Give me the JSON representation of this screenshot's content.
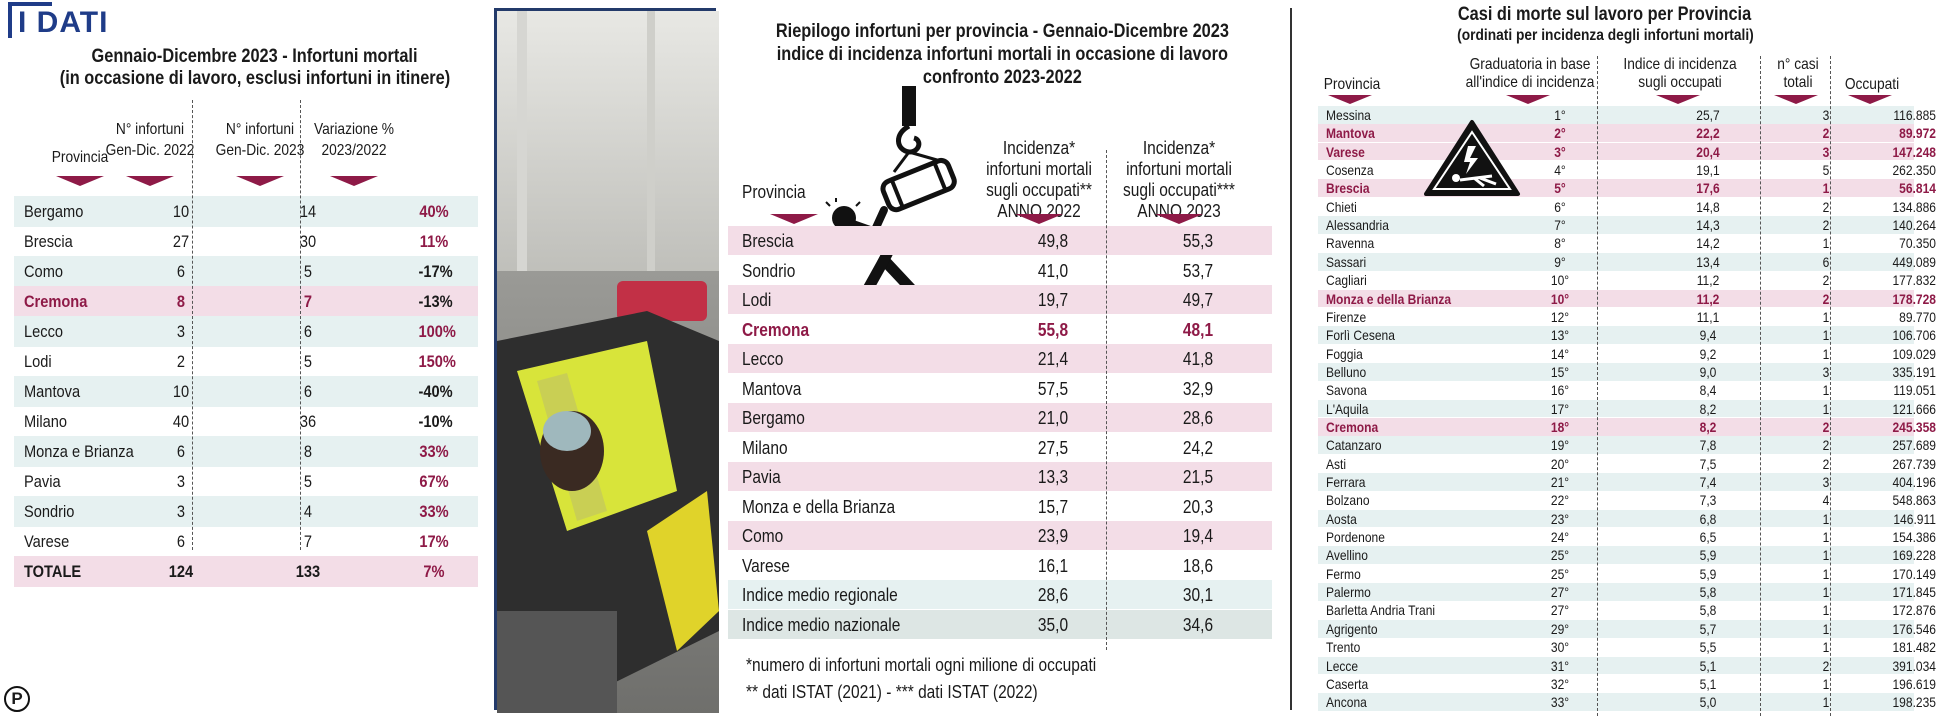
{
  "brand": {
    "label": "I DATI",
    "footer_logo": "P"
  },
  "colors": {
    "accent": "#8e1a47",
    "pink_row": "#f3dde7",
    "mint_row": "#e6f1f1",
    "navy": "#1f3c88"
  },
  "icons": [
    "crane-hook-icon",
    "falling-worker-icon",
    "warning-fatality-icon"
  ],
  "chart_data": [
    {
      "type": "table",
      "title": "Gennaio-Dicembre 2023 - Infortuni mortali",
      "subtitle": "(in occasione di lavoro, esclusi infortuni in itinere)",
      "columns": [
        "Provincia",
        "N° infortuni Gen-Dic. 2022",
        "N° infortuni Gen-Dic. 2023",
        "Variazione % 2023/2022"
      ],
      "col_lines": [
        [
          "Provincia"
        ],
        [
          "N° infortuni",
          "Gen-Dic. 2022"
        ],
        [
          "N° infortuni",
          "Gen-Dic. 2023"
        ],
        [
          "Variazione %",
          "2023/2022"
        ]
      ],
      "rows": [
        [
          "Bergamo",
          "10",
          "14",
          "40%"
        ],
        [
          "Brescia",
          "27",
          "30",
          "11%"
        ],
        [
          "Como",
          "6",
          "5",
          "-17%"
        ],
        [
          "Cremona",
          "8",
          "7",
          "-13%"
        ],
        [
          "Lecco",
          "3",
          "6",
          "100%"
        ],
        [
          "Lodi",
          "2",
          "5",
          "150%"
        ],
        [
          "Mantova",
          "10",
          "6",
          "-40%"
        ],
        [
          "Milano",
          "40",
          "36",
          "-10%"
        ],
        [
          "Monza e Brianza",
          "6",
          "8",
          "33%"
        ],
        [
          "Pavia",
          "3",
          "5",
          "67%"
        ],
        [
          "Sondrio",
          "3",
          "4",
          "33%"
        ],
        [
          "Varese",
          "6",
          "7",
          "17%"
        ],
        [
          "TOTALE",
          "124",
          "133",
          "7%"
        ]
      ]
    },
    {
      "type": "table",
      "title": "Riepilogo infortuni per provincia - Gennaio-Dicembre 2023",
      "subtitle": "indice di incidenza infortuni mortali in occasione di lavoro",
      "subtitle2": "confronto 2023-2022",
      "columns": [
        "Provincia",
        "Incidenza* infortuni mortali sugli occupati** ANNO 2022",
        "Incidenza* infortuni mortali sugli occupati*** ANNO 2023"
      ],
      "col_lines": [
        [
          "Provincia"
        ],
        [
          "Incidenza*",
          "infortuni mortali",
          "sugli occupati**",
          "ANNO 2022"
        ],
        [
          "Incidenza*",
          "infortuni mortali",
          "sugli occupati***",
          "ANNO 2023"
        ]
      ],
      "rows": [
        [
          "Brescia",
          "49,8",
          "55,3"
        ],
        [
          "Sondrio",
          "41,0",
          "53,7"
        ],
        [
          "Lodi",
          "19,7",
          "49,7"
        ],
        [
          "Cremona",
          "55,8",
          "48,1"
        ],
        [
          "Lecco",
          "21,4",
          "41,8"
        ],
        [
          "Mantova",
          "57,5",
          "32,9"
        ],
        [
          "Bergamo",
          "21,0",
          "28,6"
        ],
        [
          "Milano",
          "27,5",
          "24,2"
        ],
        [
          "Pavia",
          "13,3",
          "21,5"
        ],
        [
          "Monza e della Brianza",
          "15,7",
          "20,3"
        ],
        [
          "Como",
          "23,9",
          "19,4"
        ],
        [
          "Varese",
          "16,1",
          "18,6"
        ],
        [
          "Indice medio regionale",
          "28,6",
          "30,1"
        ],
        [
          "Indice medio nazionale",
          "35,0",
          "34,6"
        ]
      ],
      "notes": [
        "*numero di infortuni mortali ogni milione di occupati",
        "** dati ISTAT (2021) - *** dati ISTAT (2022)"
      ]
    },
    {
      "type": "table",
      "title": "Casi di morte sul lavoro per Provincia",
      "subtitle": "(ordinati per incidenza degli infortuni mortali)",
      "columns": [
        "Provincia",
        "Graduatoria in base all'indice di incidenza",
        "Indice di incidenza sugli occupati",
        "n° casi totali",
        "Occupati"
      ],
      "col_lines": [
        [
          "Provincia"
        ],
        [
          "Graduatoria in base",
          "all'indice di incidenza"
        ],
        [
          "Indice di incidenza",
          "sugli occupati"
        ],
        [
          "n° casi",
          "totali"
        ],
        [
          "Occupati"
        ]
      ],
      "rows": [
        [
          "Messina",
          "1°",
          "25,7",
          "3",
          "116.885"
        ],
        [
          "Mantova",
          "2°",
          "22,2",
          "2",
          "89.972"
        ],
        [
          "Varese",
          "3°",
          "20,4",
          "3",
          "147.248"
        ],
        [
          "Cosenza",
          "4°",
          "19,1",
          "5",
          "262.350"
        ],
        [
          "Brescia",
          "5°",
          "17,6",
          "1",
          "56.814"
        ],
        [
          "Chieti",
          "6°",
          "14,8",
          "2",
          "134.886"
        ],
        [
          "Alessandria",
          "7°",
          "14,3",
          "2",
          "140.264"
        ],
        [
          "Ravenna",
          "8°",
          "14,2",
          "1",
          "70.350"
        ],
        [
          "Sassari",
          "9°",
          "13,4",
          "6",
          "449.089"
        ],
        [
          "Cagliari",
          "10°",
          "11,2",
          "2",
          "177.832"
        ],
        [
          "Monza e della Brianza",
          "10°",
          "11,2",
          "2",
          "178.728"
        ],
        [
          "Firenze",
          "12°",
          "11,1",
          "1",
          "89.770"
        ],
        [
          "Forlì Cesena",
          "13°",
          "9,4",
          "1",
          "106.706"
        ],
        [
          "Foggia",
          "14°",
          "9,2",
          "1",
          "109.029"
        ],
        [
          "Belluno",
          "15°",
          "9,0",
          "3",
          "335.191"
        ],
        [
          "Savona",
          "16°",
          "8,4",
          "1",
          "119.051"
        ],
        [
          "L'Aquila",
          "17°",
          "8,2",
          "1",
          "121.666"
        ],
        [
          "Cremona",
          "18°",
          "8,2",
          "2",
          "245.358"
        ],
        [
          "Catanzaro",
          "19°",
          "7,8",
          "2",
          "257.689"
        ],
        [
          "Asti",
          "20°",
          "7,5",
          "2",
          "267.739"
        ],
        [
          "Ferrara",
          "21°",
          "7,4",
          "3",
          "404.196"
        ],
        [
          "Bolzano",
          "22°",
          "7,3",
          "4",
          "548.863"
        ],
        [
          "Aosta",
          "23°",
          "6,8",
          "1",
          "146.911"
        ],
        [
          "Pordenone",
          "24°",
          "6,5",
          "1",
          "154.386"
        ],
        [
          "Avellino",
          "25°",
          "5,9",
          "1",
          "169.228"
        ],
        [
          "Fermo",
          "25°",
          "5,9",
          "1",
          "170.149"
        ],
        [
          "Palermo",
          "27°",
          "5,8",
          "1",
          "171.845"
        ],
        [
          "Barletta Andria Trani",
          "27°",
          "5,8",
          "1",
          "172.876"
        ],
        [
          "Agrigento",
          "29°",
          "5,7",
          "1",
          "176.546"
        ],
        [
          "Trento",
          "30°",
          "5,5",
          "1",
          "181.482"
        ],
        [
          "Lecce",
          "31°",
          "5,1",
          "2",
          "391.034"
        ],
        [
          "Caserta",
          "32°",
          "5,1",
          "1",
          "196.619"
        ],
        [
          "Ancona",
          "33°",
          "5,0",
          "1",
          "198.235"
        ]
      ]
    }
  ]
}
